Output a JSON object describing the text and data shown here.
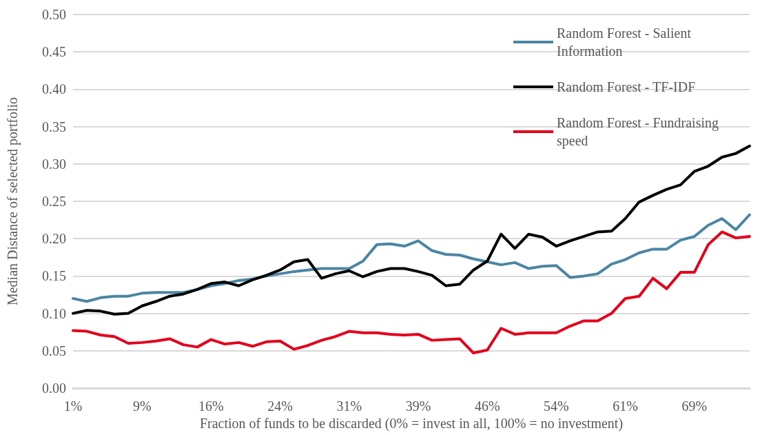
{
  "chart_data": {
    "type": "line",
    "xlabel": "Fraction of funds to be discarded (0% = invest in all, 100% = no investment)",
    "ylabel": "Median Distance of selected portfolio",
    "categories": [
      "1%",
      null,
      null,
      null,
      null,
      "9%",
      null,
      null,
      null,
      null,
      "16%",
      null,
      null,
      null,
      null,
      "24%",
      null,
      null,
      null,
      null,
      "31%",
      null,
      null,
      null,
      null,
      "39%",
      null,
      null,
      null,
      null,
      "46%",
      null,
      null,
      null,
      null,
      "54%",
      null,
      null,
      null,
      null,
      "61%",
      null,
      null,
      null,
      null,
      "69%",
      null,
      null,
      null,
      null
    ],
    "series": [
      {
        "name": "Random Forest - Salient Information",
        "color": "#4a86a4",
        "values": [
          0.12,
          0.116,
          0.121,
          0.123,
          0.123,
          0.127,
          0.128,
          0.128,
          0.128,
          0.132,
          0.137,
          0.14,
          0.144,
          0.146,
          0.15,
          0.153,
          0.156,
          0.158,
          0.16,
          0.16,
          0.16,
          0.17,
          0.192,
          0.193,
          0.19,
          0.197,
          0.184,
          0.179,
          0.178,
          0.173,
          0.169,
          0.165,
          0.168,
          0.16,
          0.163,
          0.164,
          0.148,
          0.15,
          0.153,
          0.166,
          0.172,
          0.181,
          0.186,
          0.186,
          0.198,
          0.203,
          0.218,
          0.227,
          0.212,
          0.232
        ]
      },
      {
        "name": "Random Forest - TF-IDF",
        "color": "#000000",
        "values": [
          0.1,
          0.104,
          0.103,
          0.099,
          0.1,
          0.11,
          0.116,
          0.123,
          0.126,
          0.132,
          0.14,
          0.142,
          0.137,
          0.145,
          0.151,
          0.158,
          0.169,
          0.172,
          0.147,
          0.153,
          0.157,
          0.149,
          0.156,
          0.16,
          0.16,
          0.156,
          0.151,
          0.137,
          0.139,
          0.158,
          0.17,
          0.206,
          0.187,
          0.206,
          0.202,
          0.19,
          0.197,
          0.203,
          0.209,
          0.21,
          0.227,
          0.249,
          0.258,
          0.266,
          0.272,
          0.29,
          0.297,
          0.309,
          0.314,
          0.324
        ]
      },
      {
        "name": "Random Forest - Fundraising speed",
        "color": "#e2001a",
        "values": [
          0.077,
          0.076,
          0.071,
          0.069,
          0.06,
          0.061,
          0.063,
          0.066,
          0.058,
          0.055,
          0.065,
          0.059,
          0.061,
          0.056,
          0.062,
          0.063,
          0.052,
          0.057,
          0.064,
          0.069,
          0.076,
          0.074,
          0.074,
          0.072,
          0.071,
          0.072,
          0.064,
          0.065,
          0.066,
          0.047,
          0.051,
          0.08,
          0.072,
          0.074,
          0.074,
          0.074,
          0.083,
          0.09,
          0.09,
          0.1,
          0.12,
          0.123,
          0.147,
          0.133,
          0.155,
          0.155,
          0.192,
          0.209,
          0.201,
          0.203
        ]
      }
    ],
    "ylim": [
      0,
      0.5
    ],
    "yticks": [
      {
        "value": 0,
        "label": "0.00"
      },
      {
        "value": 0.05,
        "label": "0.05"
      },
      {
        "value": 0.1,
        "label": "0.10"
      },
      {
        "value": 0.15,
        "label": "0.15"
      },
      {
        "value": 0.2,
        "label": "0.20"
      },
      {
        "value": 0.25,
        "label": "0.25"
      },
      {
        "value": 0.3,
        "label": "0.30"
      },
      {
        "value": 0.35,
        "label": "0.35"
      },
      {
        "value": 0.4,
        "label": "0.40"
      },
      {
        "value": 0.45,
        "label": "0.45"
      },
      {
        "value": 0.5,
        "label": "0.50"
      }
    ],
    "grid": "y",
    "legend": "top right",
    "marker": "none",
    "line_style": "solid"
  }
}
